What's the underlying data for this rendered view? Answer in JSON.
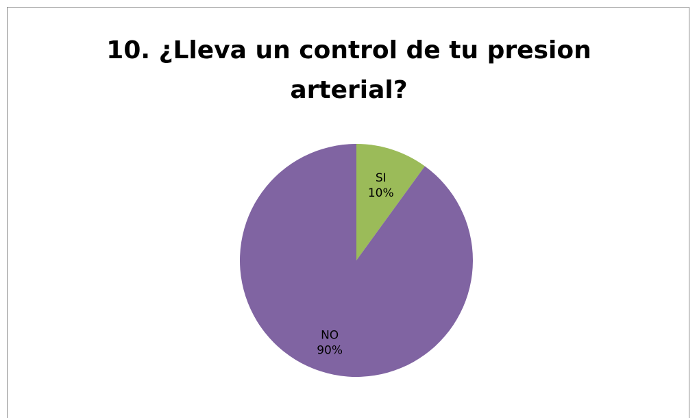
{
  "chart_data": {
    "type": "pie",
    "title": "10. ¿Lleva un control de tu presion arterial?",
    "categories": [
      "SI",
      "NO"
    ],
    "values": [
      10,
      90
    ],
    "value_labels": [
      "10%",
      "90%"
    ],
    "colors": [
      "#9bbb59",
      "#8064a2"
    ],
    "legend": "none",
    "start_angle_deg": 0,
    "direction": "clockwise"
  }
}
